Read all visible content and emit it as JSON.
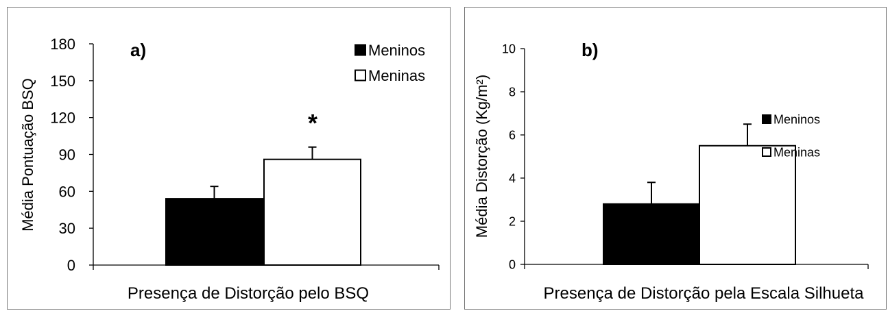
{
  "chart_data": [
    {
      "type": "bar",
      "panel_label": "a)",
      "ylabel": "Média Pontuação BSQ",
      "xlabel": "Presença de Distorção pelo BSQ",
      "ylim": [
        0,
        180
      ],
      "yticks": [
        0,
        30,
        60,
        90,
        120,
        150,
        180
      ],
      "grid": false,
      "legend_position": "top-right",
      "annotation": "*",
      "series": [
        {
          "name": "Meninos",
          "values": [
            54
          ],
          "error": [
            10
          ],
          "color": "#000000"
        },
        {
          "name": "Meninas",
          "values": [
            86
          ],
          "error": [
            10
          ],
          "color": "#ffffff"
        }
      ]
    },
    {
      "type": "bar",
      "panel_label": "b)",
      "ylabel": "Média Distorção (Kg/m²)",
      "xlabel": "Presença de Distorção pela Escala Silhueta",
      "ylim": [
        0,
        10
      ],
      "yticks": [
        0,
        2,
        4,
        6,
        8,
        10
      ],
      "grid": false,
      "legend_position": "top-right",
      "series": [
        {
          "name": "Meninos",
          "values": [
            2.8
          ],
          "error": [
            1.0
          ],
          "color": "#000000"
        },
        {
          "name": "Meninas",
          "values": [
            5.5
          ],
          "error": [
            1.0
          ],
          "color": "#ffffff"
        }
      ]
    }
  ]
}
